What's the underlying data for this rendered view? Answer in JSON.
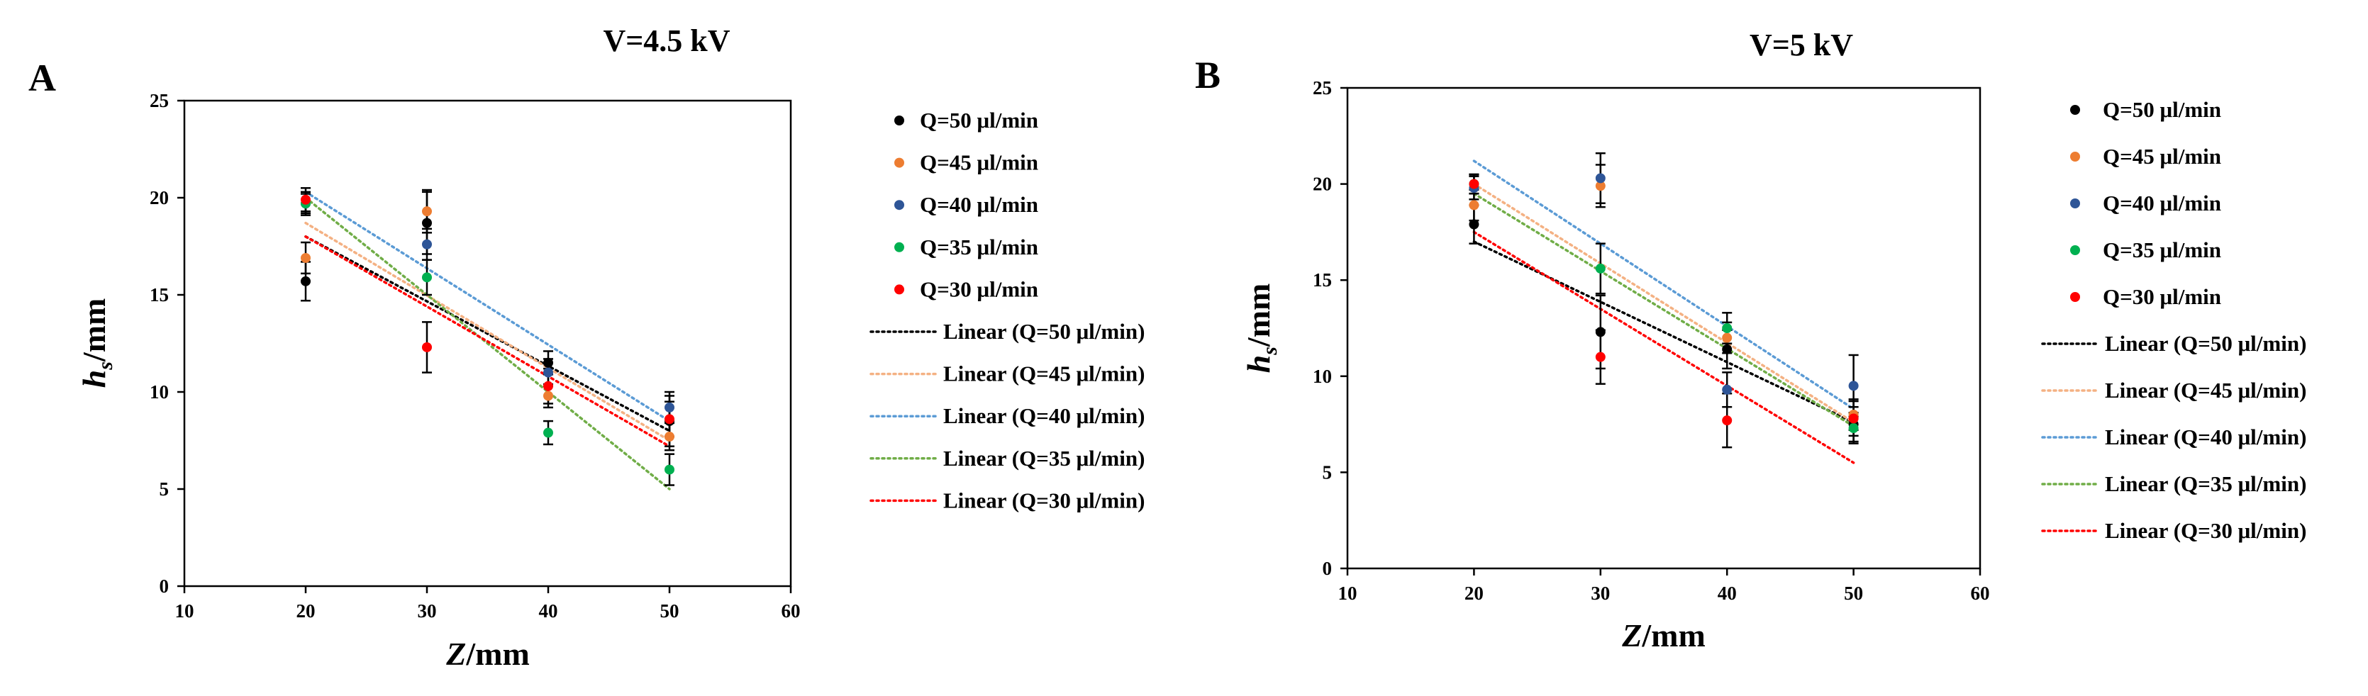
{
  "figure": {
    "colors": {
      "black": "#000000",
      "orange": "#ED7D31",
      "blue": "#2E5597",
      "green": "#00B050",
      "red": "#FF0000",
      "lightblue": "#5B9BD5",
      "lightorange": "#F4B183",
      "lightgreen": "#70AD47"
    }
  },
  "chart_data": [
    {
      "type": "scatter",
      "panel": "A",
      "title": "V=4.5 kV",
      "xlabel_main": "Z",
      "xlabel_unit": "/mm",
      "ylabel_main": "h",
      "ylabel_sub": "s",
      "ylabel_unit": "/mm",
      "xlim": [
        10,
        60
      ],
      "ylim": [
        0,
        25
      ],
      "xticks": [
        "10",
        "20",
        "30",
        "40",
        "50",
        "60"
      ],
      "yticks": [
        "0",
        "5",
        "10",
        "15",
        "20",
        "25"
      ],
      "x": [
        20,
        30,
        40,
        50
      ],
      "series": [
        {
          "name": "Q=50 μl/min",
          "color": "#000000",
          "values": [
            15.7,
            18.7,
            11.5,
            8.5
          ],
          "errors": [
            1.0,
            1.6,
            0.6,
            1.3
          ]
        },
        {
          "name": "Q=45 μl/min",
          "color": "#ED7D31",
          "values": [
            16.9,
            19.3,
            9.8,
            7.7
          ],
          "errors": [
            0.8,
            1.1,
            0.6,
            0.7
          ]
        },
        {
          "name": "Q=40 μl/min",
          "color": "#2E5597",
          "values": [
            19.7,
            17.6,
            11.0,
            9.2
          ],
          "errors": [
            0.6,
            0.8,
            0.7,
            0.8
          ]
        },
        {
          "name": "Q=35 μl/min",
          "color": "#00B050",
          "values": [
            19.7,
            15.9,
            7.9,
            6.0
          ],
          "errors": [
            0.5,
            0.9,
            0.6,
            0.8
          ]
        },
        {
          "name": "Q=30 μl/min",
          "color": "#FF0000",
          "values": [
            19.9,
            12.3,
            10.3,
            8.6
          ],
          "errors": [
            0.6,
            1.3,
            0.9,
            0.9
          ]
        }
      ],
      "trendlines": [
        {
          "name": "Linear (Q=50 μl/min)",
          "color": "#000000",
          "from": [
            20,
            18.0
          ],
          "to": [
            50,
            8.0
          ]
        },
        {
          "name": "Linear (Q=45 μl/min)",
          "color": "#F4B183",
          "from": [
            20,
            18.7
          ],
          "to": [
            50,
            7.5
          ]
        },
        {
          "name": "Linear (Q=40 μl/min)",
          "color": "#5B9BD5",
          "from": [
            20,
            20.3
          ],
          "to": [
            50,
            8.5
          ]
        },
        {
          "name": "Linear (Q=35 μl/min)",
          "color": "#70AD47",
          "from": [
            20,
            20.0
          ],
          "to": [
            50,
            5.0
          ]
        },
        {
          "name": "Linear (Q=30 μl/min)",
          "color": "#FF0000",
          "from": [
            20,
            18.0
          ],
          "to": [
            50,
            7.2
          ]
        }
      ]
    },
    {
      "type": "scatter",
      "panel": "B",
      "title": "V=5 kV",
      "xlabel_main": "Z",
      "xlabel_unit": "/mm",
      "ylabel_main": "h",
      "ylabel_sub": "s",
      "ylabel_unit": "/mm",
      "xlim": [
        10,
        60
      ],
      "ylim": [
        0,
        25
      ],
      "xticks": [
        "10",
        "20",
        "30",
        "40",
        "50",
        "60"
      ],
      "yticks": [
        "0",
        "5",
        "10",
        "15",
        "20",
        "25"
      ],
      "x": [
        20,
        30,
        40,
        50
      ],
      "series": [
        {
          "name": "Q=50 μl/min",
          "color": "#000000",
          "values": [
            17.9,
            12.3,
            11.4,
            7.5
          ],
          "errors": [
            1.0,
            1.9,
            1.0,
            0.9
          ]
        },
        {
          "name": "Q=45 μl/min",
          "color": "#ED7D31",
          "values": [
            18.9,
            19.9,
            12.0,
            8.0
          ],
          "errors": [
            0.8,
            1.1,
            0.8,
            0.8
          ]
        },
        {
          "name": "Q=40 μl/min",
          "color": "#2E5597",
          "values": [
            19.8,
            20.3,
            9.3,
            9.5
          ],
          "errors": [
            0.6,
            1.3,
            0.9,
            1.6
          ]
        },
        {
          "name": "Q=35 μl/min",
          "color": "#00B050",
          "values": [
            20.0,
            15.6,
            12.5,
            7.3
          ],
          "errors": [
            0.5,
            1.3,
            0.8,
            0.8
          ]
        },
        {
          "name": "Q=30 μl/min",
          "color": "#FF0000",
          "values": [
            20.0,
            11.0,
            7.7,
            7.8
          ],
          "errors": [
            0.5,
            1.4,
            1.4,
            0.9
          ]
        }
      ],
      "trendlines": [
        {
          "name": "Linear (Q=50 μl/min)",
          "color": "#000000",
          "from": [
            20,
            17.0
          ],
          "to": [
            50,
            7.6
          ]
        },
        {
          "name": "Linear (Q=45 μl/min)",
          "color": "#F4B183",
          "from": [
            20,
            20.0
          ],
          "to": [
            50,
            7.6
          ]
        },
        {
          "name": "Linear (Q=40 μl/min)",
          "color": "#5B9BD5",
          "from": [
            20,
            21.2
          ],
          "to": [
            50,
            8.3
          ]
        },
        {
          "name": "Linear (Q=35 μl/min)",
          "color": "#70AD47",
          "from": [
            20,
            19.5
          ],
          "to": [
            50,
            7.4
          ]
        },
        {
          "name": "Linear (Q=30 μl/min)",
          "color": "#FF0000",
          "from": [
            20,
            17.5
          ],
          "to": [
            50,
            5.5
          ]
        }
      ]
    }
  ]
}
